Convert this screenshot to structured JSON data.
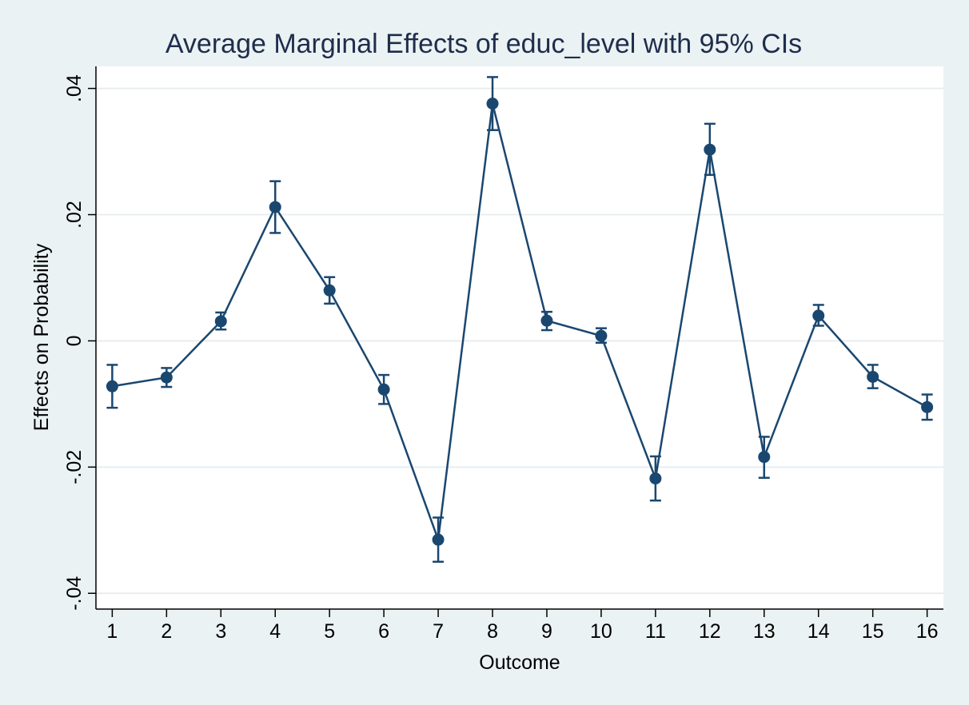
{
  "chart_data": {
    "type": "line",
    "title": "Average Marginal Effects of educ_level with 95% CIs",
    "xlabel": "Outcome",
    "ylabel": "Effects on Probability",
    "x": [
      1,
      2,
      3,
      4,
      5,
      6,
      7,
      8,
      9,
      10,
      11,
      12,
      13,
      14,
      15,
      16
    ],
    "x_tick_labels": [
      "1",
      "2",
      "3",
      "4",
      "5",
      "6",
      "7",
      "8",
      "9",
      "10",
      "11",
      "12",
      "13",
      "14",
      "15",
      "16"
    ],
    "y_ticks": [
      -0.04,
      -0.02,
      0,
      0.02,
      0.04
    ],
    "y_tick_labels": [
      "-.04",
      "-.02",
      "0",
      ".02",
      ".04"
    ],
    "ylim": [
      -0.0425,
      0.0435
    ],
    "xlim": [
      0.7,
      16.3
    ],
    "grid": true,
    "legend": "none",
    "series": [
      {
        "values": [
          -0.0072,
          -0.0058,
          0.0031,
          0.0212,
          0.008,
          -0.0077,
          -0.0315,
          0.0376,
          0.0032,
          0.0008,
          -0.0218,
          0.0303,
          -0.0184,
          0.004,
          -0.0057,
          -0.0105
        ],
        "ci_lower": [
          -0.0106,
          -0.0073,
          0.0018,
          0.0171,
          0.0059,
          -0.01,
          -0.035,
          0.0334,
          0.0017,
          -0.0003,
          -0.0253,
          0.0263,
          -0.0217,
          0.0024,
          -0.0075,
          -0.0125
        ],
        "ci_upper": [
          -0.0038,
          -0.0043,
          0.0045,
          0.0253,
          0.0101,
          -0.0054,
          -0.028,
          0.0418,
          0.0046,
          0.002,
          -0.0183,
          0.0344,
          -0.0152,
          0.0057,
          -0.0038,
          -0.0085
        ],
        "color": "#1a476f"
      }
    ],
    "colors": {
      "background": "#eaf2f3",
      "plot_area": "#ffffff",
      "grid": "#e8eef0",
      "series": "#1a476f",
      "title": "#1f2d4d",
      "text": "#000000"
    }
  }
}
